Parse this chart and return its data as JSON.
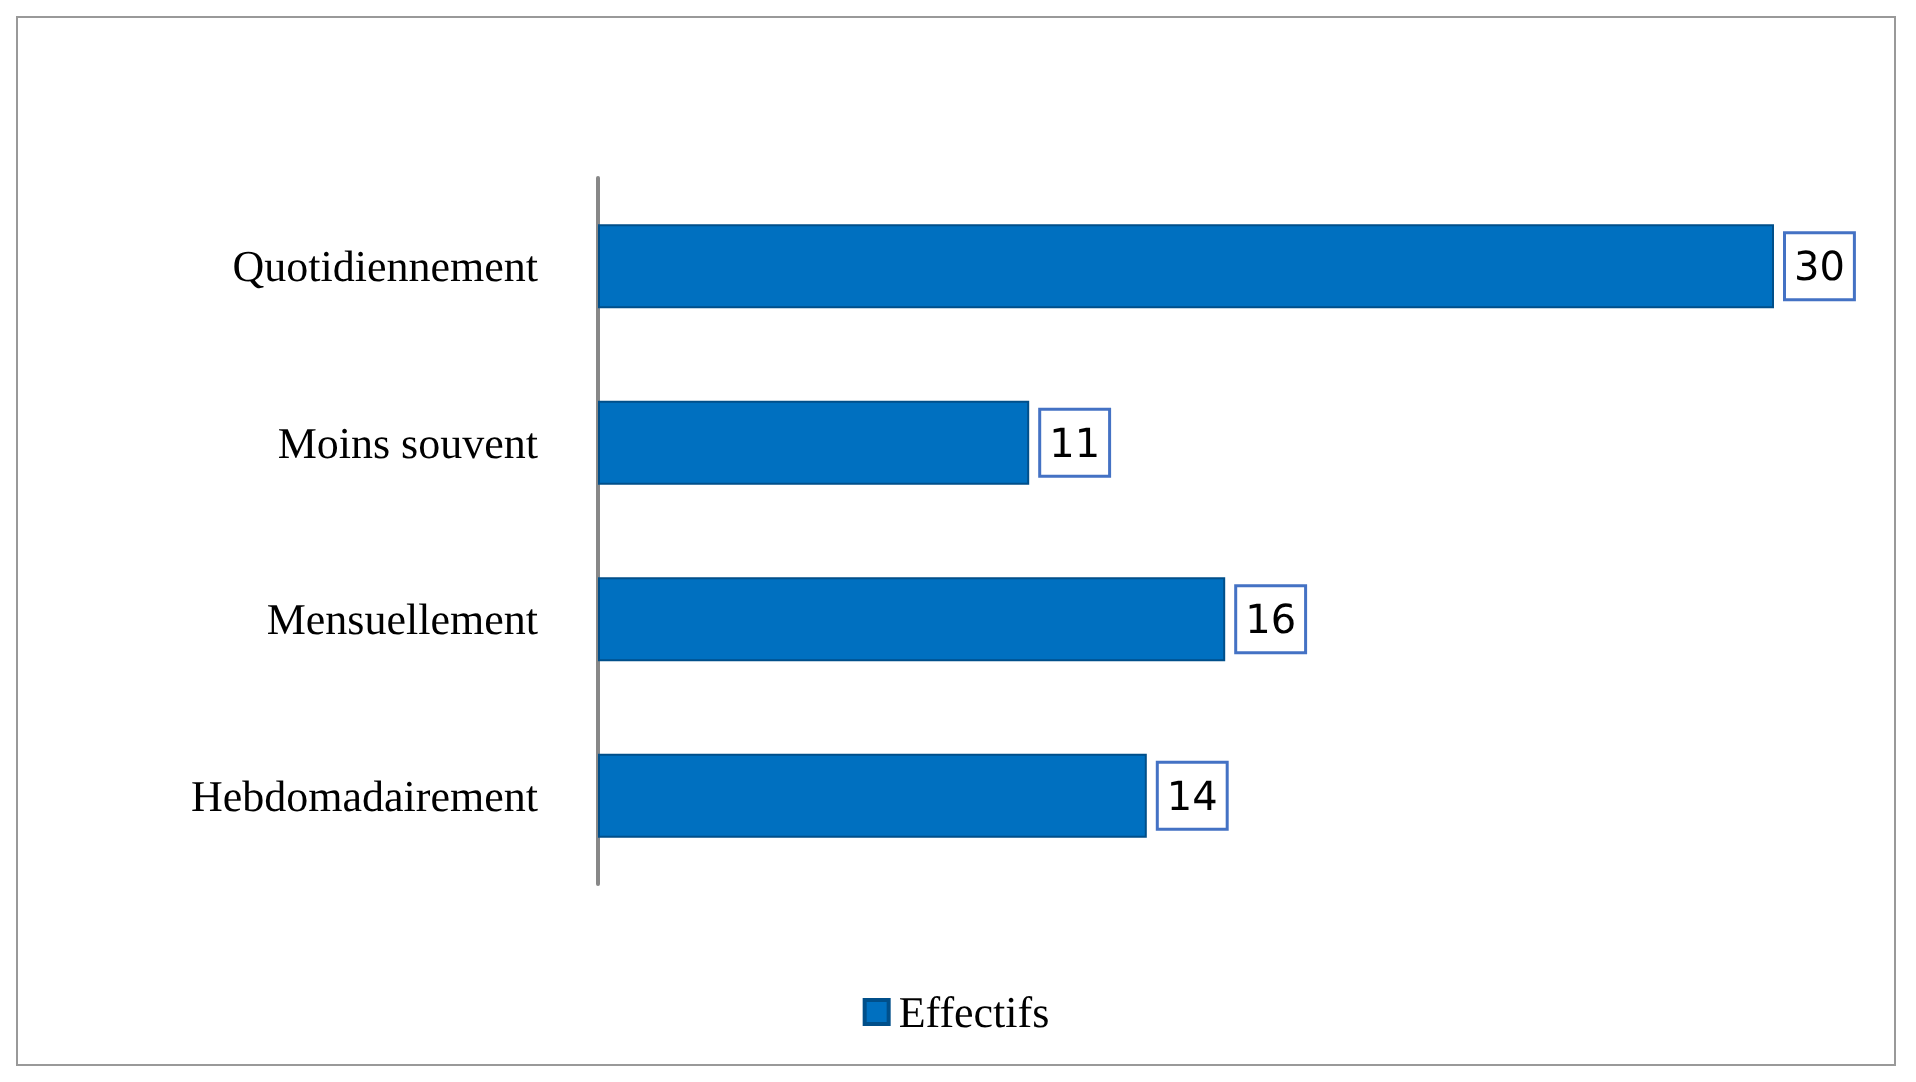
{
  "chart_data": {
    "type": "bar",
    "orientation": "horizontal",
    "categories": [
      "Quotidiennement",
      "Moins souvent",
      "Mensuellement",
      "Hebdomadairement"
    ],
    "series": [
      {
        "name": "Effectifs",
        "color": "#0070c0",
        "values": [
          30,
          11,
          16,
          14
        ]
      }
    ],
    "data_labels": true,
    "legend": "bottom"
  }
}
